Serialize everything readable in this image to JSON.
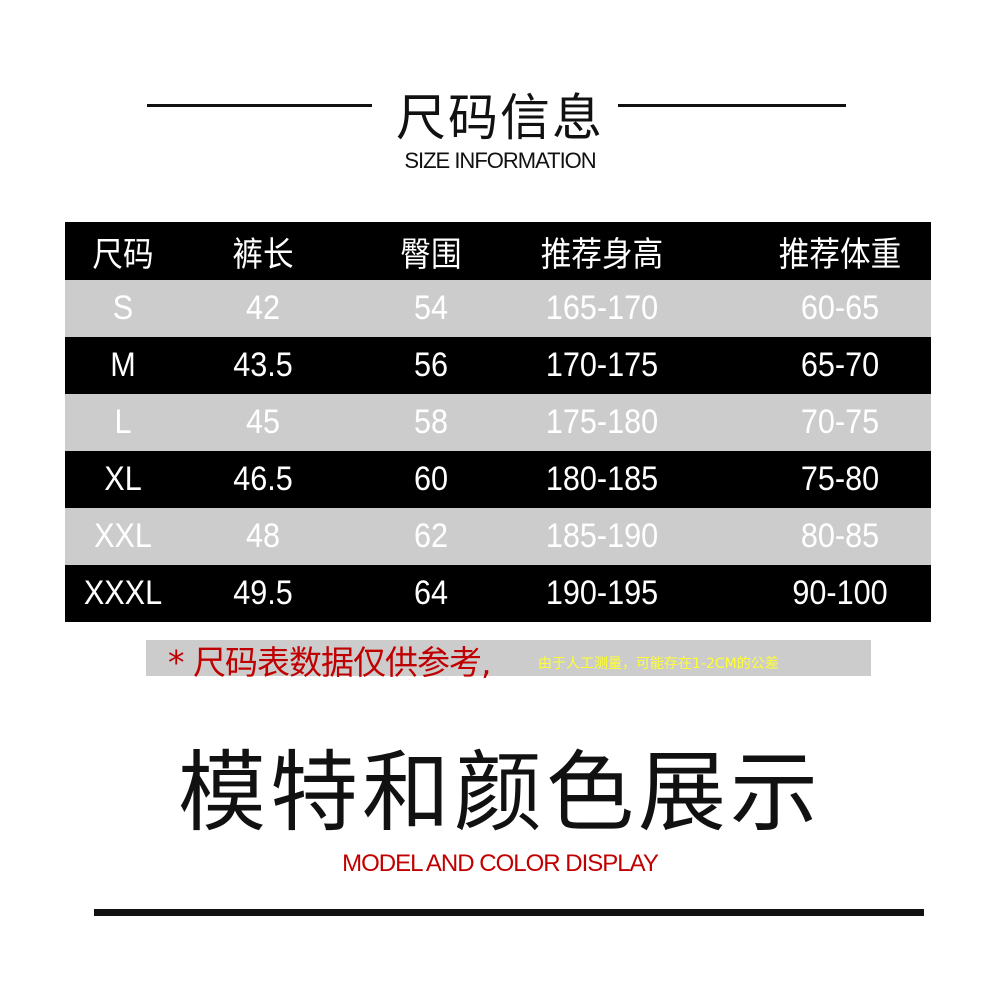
{
  "title": "尺码信息",
  "subtitle": "SIZE INFORMATION",
  "table": {
    "headers": [
      "尺码",
      "裤长",
      "臀围",
      "推荐身高",
      "推荐体重"
    ],
    "rows": [
      [
        "S",
        "42",
        "54",
        "165-170",
        "60-65"
      ],
      [
        "M",
        "43.5",
        "56",
        "170-175",
        "65-70"
      ],
      [
        "L",
        "45",
        "58",
        "175-180",
        "70-75"
      ],
      [
        "XL",
        "46.5",
        "60",
        "180-185",
        "75-80"
      ],
      [
        "XXL",
        "48",
        "62",
        "185-190",
        "80-85"
      ],
      [
        "XXXL",
        "49.5",
        "64",
        "190-195",
        "90-100"
      ]
    ]
  },
  "note": {
    "main": "* 尺码表数据仅供参考,",
    "sub": "由于人工测量，可能存在1-2CM的公差"
  },
  "section_title": "模特和颜色展示",
  "section_subtitle": "MODEL AND COLOR DISPLAY",
  "colors": {
    "dark_row": "#000000",
    "light_row": "#cccccc",
    "accent_red": "#c00000",
    "note_yellow": "#ffff33"
  }
}
